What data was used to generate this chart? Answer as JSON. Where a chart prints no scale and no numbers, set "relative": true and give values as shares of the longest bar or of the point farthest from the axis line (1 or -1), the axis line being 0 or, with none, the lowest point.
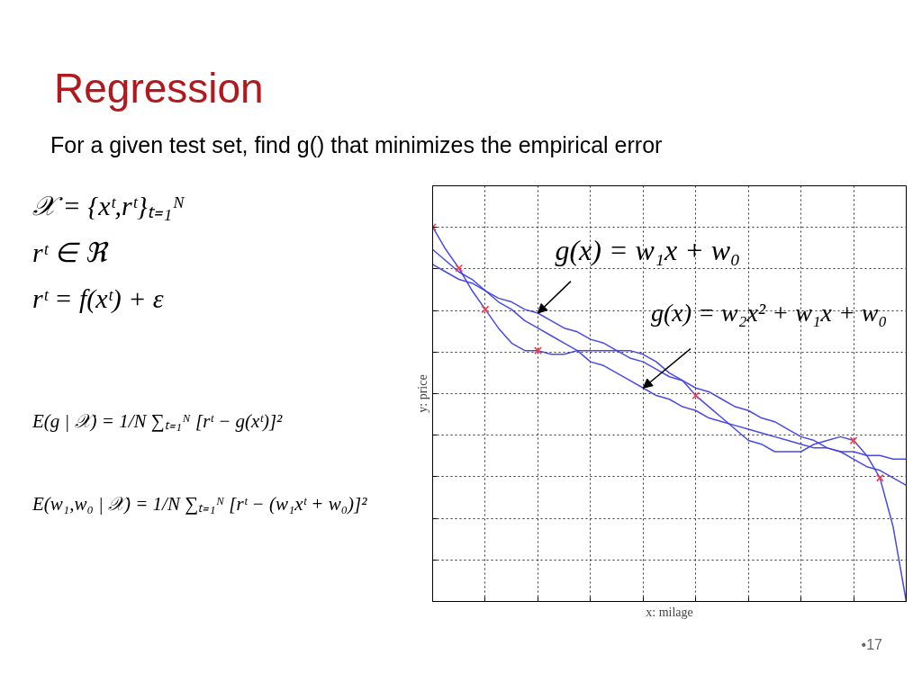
{
  "chart_data": {
    "type": "line",
    "title": "Regression",
    "subtitle": "For a given test set, find g() that minimizes the empirical error",
    "xlabel": "x: milage",
    "ylabel": "y: price",
    "annotations": [
      "𝒳 = {xᵗ,rᵗ}ₜ₌₁ᴺ",
      "rᵗ ∈ ℜ",
      "rᵗ = f(xᵗ) + ε",
      "E(g | 𝒳) = 1/N ∑ₜ₌₁ᴺ [rᵗ − g(xᵗ)]²",
      "E(w₁,w₀ | 𝒳) = 1/N ∑ₜ₌₁ᴺ [rᵗ − (w₁xᵗ + w₀)]²",
      "g(x) = w₁x + w₀",
      "g(x) = w₂x² + w₁x + w₀",
      "•17"
    ],
    "categories": [
      null,
      null,
      null,
      null,
      null,
      null,
      null,
      null,
      null,
      null,
      null,
      null,
      null,
      null,
      null,
      null,
      null,
      null,
      null,
      null,
      null,
      null,
      null,
      null,
      null,
      null,
      null,
      null,
      null,
      null,
      null,
      null,
      null,
      null,
      null,
      null,
      null
    ],
    "relative": true,
    "grid": true,
    "series": [
      {
        "color": "#3f3fe6",
        "values": [
          1.0,
          0.94,
          0.89,
          0.83,
          0.78,
          0.73,
          0.69,
          0.67,
          0.67,
          0.66,
          0.66,
          0.67,
          0.67,
          0.67,
          0.67,
          0.67,
          0.66,
          0.64,
          0.61,
          0.59,
          0.55,
          0.52,
          0.49,
          0.46,
          0.43,
          0.42,
          0.4,
          0.4,
          0.4,
          0.42,
          0.43,
          0.44,
          0.43,
          0.39,
          0.33,
          0.2,
          0.0
        ]
      },
      {
        "color": "#3f3fe6",
        "values": [
          0.94,
          0.91,
          0.88,
          0.86,
          0.83,
          0.8,
          0.78,
          0.75,
          0.73,
          0.71,
          0.69,
          0.67,
          0.64,
          0.63,
          0.61,
          0.59,
          0.57,
          0.55,
          0.54,
          0.52,
          0.51,
          0.49,
          0.48,
          0.47,
          0.46,
          0.45,
          0.44,
          0.43,
          0.42,
          0.41,
          0.41,
          0.4,
          0.4,
          0.39,
          0.39,
          0.38,
          0.38
        ]
      },
      {
        "color": "#3f3fe6",
        "values": [
          0.9,
          0.88,
          0.86,
          0.85,
          0.83,
          0.81,
          0.8,
          0.78,
          0.77,
          0.75,
          0.73,
          0.72,
          0.7,
          0.69,
          0.67,
          0.65,
          0.64,
          0.62,
          0.6,
          0.59,
          0.57,
          0.56,
          0.54,
          0.52,
          0.51,
          0.49,
          0.48,
          0.46,
          0.44,
          0.43,
          0.41,
          0.4,
          0.38,
          0.36,
          0.35,
          0.33,
          0.31
        ]
      },
      {
        "color": "#f03c50",
        "marker": "cross",
        "values": [
          1.0,
          null,
          0.89,
          null,
          0.78,
          null,
          null,
          null,
          0.67,
          null,
          null,
          null,
          null,
          null,
          null,
          null,
          null,
          null,
          null,
          null,
          0.55,
          null,
          null,
          null,
          null,
          null,
          null,
          null,
          null,
          null,
          null,
          null,
          0.43,
          null,
          0.33,
          null,
          null
        ]
      }
    ]
  }
}
